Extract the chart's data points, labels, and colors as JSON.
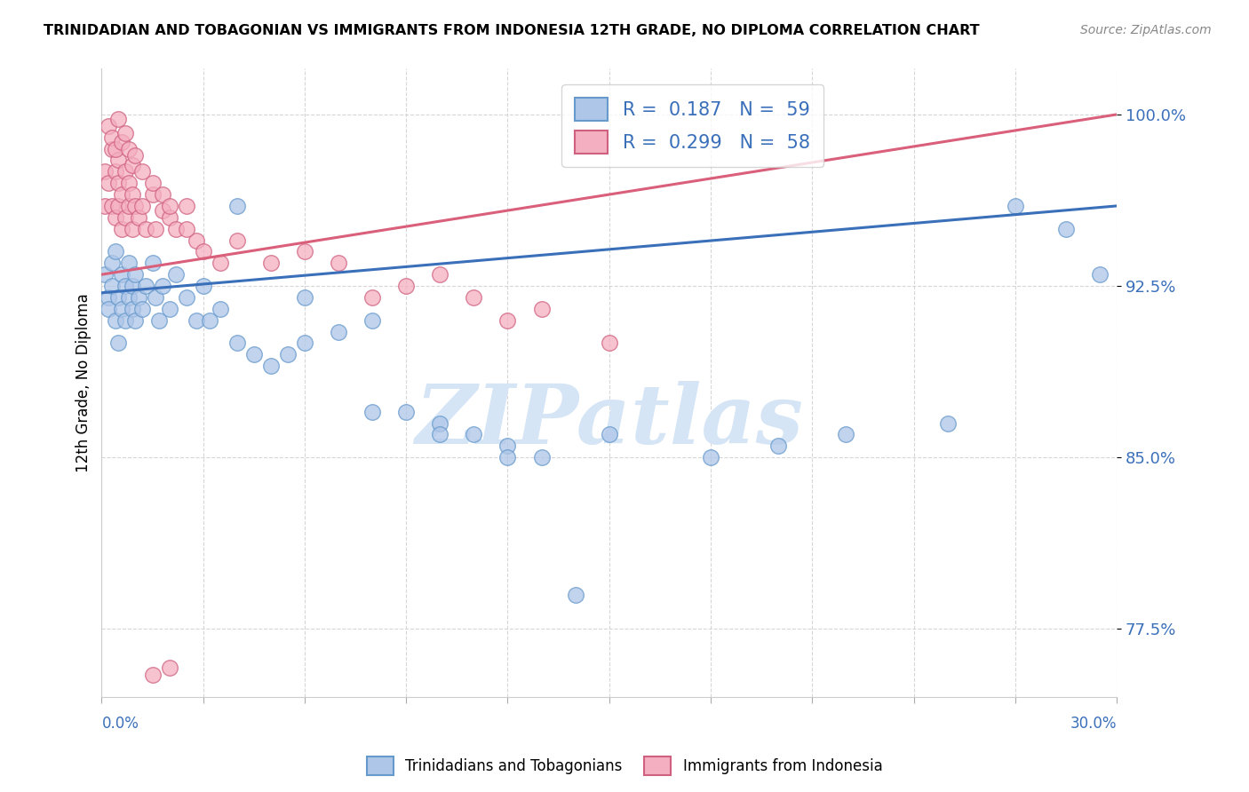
{
  "title": "TRINIDADIAN AND TOBAGONIAN VS IMMIGRANTS FROM INDONESIA 12TH GRADE, NO DIPLOMA CORRELATION CHART",
  "source": "Source: ZipAtlas.com",
  "ylabel_axis_label": "12th Grade, No Diploma",
  "ylabel_labels": [
    "77.5%",
    "85.0%",
    "92.5%",
    "100.0%"
  ],
  "ylabel_values": [
    0.775,
    0.85,
    0.925,
    1.0
  ],
  "legend_entries": [
    {
      "label": "Trinidadians and Tobagonians",
      "R": 0.187,
      "N": 59,
      "color": "#aec6e8"
    },
    {
      "label": "Immigrants from Indonesia",
      "R": 0.299,
      "N": 58,
      "color": "#f4afc0"
    }
  ],
  "blue_line_color": "#3a6fba",
  "pink_line_color": "#d95f7a",
  "blue_scatter_face": "#aec6e8",
  "blue_scatter_edge": "#6699cc",
  "pink_scatter_face": "#f4afc0",
  "pink_scatter_edge": "#d06080",
  "watermark_text": "ZIPatlas",
  "watermark_color": "#d5e5f5",
  "background_color": "#ffffff",
  "grid_color": "#cccccc",
  "xlim": [
    0.0,
    0.3
  ],
  "ylim": [
    0.745,
    1.02
  ],
  "blue_trend_x0": 0.0,
  "blue_trend_y0": 0.922,
  "blue_trend_x1": 0.3,
  "blue_trend_y1": 0.96,
  "pink_trend_x0": 0.0,
  "pink_trend_y0": 0.93,
  "pink_trend_x1": 0.3,
  "pink_trend_y1": 1.0,
  "blue_x": [
    0.001,
    0.002,
    0.002,
    0.003,
    0.003,
    0.004,
    0.004,
    0.005,
    0.005,
    0.006,
    0.006,
    0.007,
    0.007,
    0.008,
    0.008,
    0.009,
    0.009,
    0.01,
    0.01,
    0.011,
    0.012,
    0.013,
    0.015,
    0.016,
    0.017,
    0.018,
    0.02,
    0.022,
    0.025,
    0.028,
    0.03,
    0.032,
    0.035,
    0.04,
    0.045,
    0.05,
    0.055,
    0.06,
    0.07,
    0.08,
    0.09,
    0.1,
    0.11,
    0.12,
    0.13,
    0.15,
    0.18,
    0.2,
    0.22,
    0.25,
    0.27,
    0.285,
    0.295,
    0.04,
    0.06,
    0.08,
    0.1,
    0.12,
    0.14
  ],
  "blue_y": [
    0.93,
    0.92,
    0.915,
    0.925,
    0.935,
    0.91,
    0.94,
    0.92,
    0.9,
    0.93,
    0.915,
    0.925,
    0.91,
    0.935,
    0.92,
    0.915,
    0.925,
    0.93,
    0.91,
    0.92,
    0.915,
    0.925,
    0.935,
    0.92,
    0.91,
    0.925,
    0.915,
    0.93,
    0.92,
    0.91,
    0.925,
    0.91,
    0.915,
    0.9,
    0.895,
    0.89,
    0.895,
    0.9,
    0.905,
    0.91,
    0.87,
    0.865,
    0.86,
    0.855,
    0.85,
    0.86,
    0.85,
    0.855,
    0.86,
    0.865,
    0.96,
    0.95,
    0.93,
    0.96,
    0.92,
    0.87,
    0.86,
    0.85,
    0.79
  ],
  "pink_x": [
    0.001,
    0.001,
    0.002,
    0.002,
    0.003,
    0.003,
    0.004,
    0.004,
    0.005,
    0.005,
    0.005,
    0.006,
    0.006,
    0.007,
    0.007,
    0.008,
    0.008,
    0.009,
    0.009,
    0.01,
    0.011,
    0.012,
    0.013,
    0.015,
    0.016,
    0.018,
    0.02,
    0.022,
    0.025,
    0.028,
    0.03,
    0.035,
    0.04,
    0.05,
    0.06,
    0.07,
    0.08,
    0.09,
    0.1,
    0.11,
    0.12,
    0.13,
    0.15,
    0.003,
    0.004,
    0.005,
    0.006,
    0.007,
    0.008,
    0.009,
    0.01,
    0.012,
    0.015,
    0.018,
    0.02,
    0.025,
    0.015,
    0.02
  ],
  "pink_y": [
    0.975,
    0.96,
    0.995,
    0.97,
    0.985,
    0.96,
    0.975,
    0.955,
    0.98,
    0.96,
    0.97,
    0.965,
    0.95,
    0.975,
    0.955,
    0.97,
    0.96,
    0.965,
    0.95,
    0.96,
    0.955,
    0.96,
    0.95,
    0.965,
    0.95,
    0.958,
    0.955,
    0.95,
    0.96,
    0.945,
    0.94,
    0.935,
    0.945,
    0.935,
    0.94,
    0.935,
    0.92,
    0.925,
    0.93,
    0.92,
    0.91,
    0.915,
    0.9,
    0.99,
    0.985,
    0.998,
    0.988,
    0.992,
    0.985,
    0.978,
    0.982,
    0.975,
    0.97,
    0.965,
    0.96,
    0.95,
    0.755,
    0.758
  ]
}
